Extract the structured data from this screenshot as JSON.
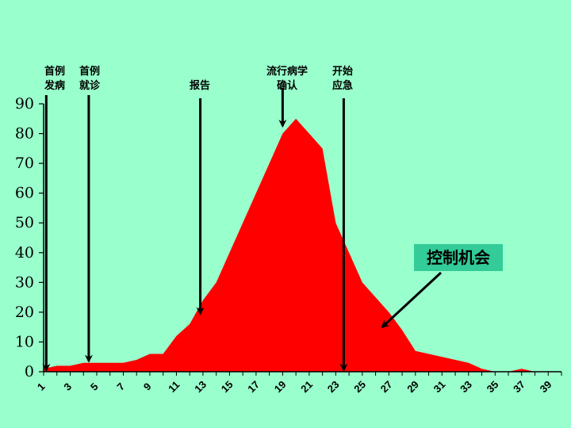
{
  "colors": {
    "background": "#99FFCC",
    "area_fill": "#FF0000",
    "callout_box": "#33CC99",
    "arrow": "#000000"
  },
  "chart_data": {
    "type": "area",
    "title": "",
    "xlabel": "",
    "ylabel": "",
    "ylim": [
      0,
      90
    ],
    "xlim": [
      1,
      40
    ],
    "y_ticks": [
      "0",
      "10",
      "20",
      "30",
      "40",
      "50",
      "60",
      "70",
      "80",
      "90"
    ],
    "x_ticks": [
      "1",
      "3",
      "5",
      "7",
      "9",
      "11",
      "13",
      "15",
      "17",
      "19",
      "21",
      "23",
      "25",
      "27",
      "29",
      "31",
      "33",
      "35",
      "37",
      "39"
    ],
    "grid": false,
    "x": [
      1,
      2,
      3,
      4,
      5,
      6,
      7,
      8,
      9,
      10,
      11,
      12,
      13,
      14,
      15,
      16,
      17,
      18,
      19,
      20,
      21,
      22,
      23,
      24,
      25,
      26,
      27,
      28,
      29,
      30,
      31,
      32,
      33,
      34,
      35,
      36,
      37,
      38,
      39,
      40
    ],
    "values": [
      1,
      2,
      2,
      3,
      3,
      3,
      3,
      4,
      6,
      6,
      12,
      16,
      24,
      30,
      40,
      50,
      60,
      70,
      80,
      85,
      80,
      75,
      50,
      40,
      30,
      25,
      20,
      14,
      7,
      6,
      5,
      4,
      3,
      1,
      0,
      0,
      1,
      0,
      0,
      0
    ],
    "annotations": [
      {
        "lines": [
          "首例",
          "发病"
        ],
        "x": 1.2,
        "y_tip": 0
      },
      {
        "lines": [
          "首例",
          "就诊"
        ],
        "x": 4.4,
        "y_tip": 3
      },
      {
        "lines": [
          "报告"
        ],
        "x": 12.8,
        "y_tip": 19
      },
      {
        "lines": [
          "流行病学",
          "确认"
        ],
        "x": 19,
        "y_tip": 82
      },
      {
        "lines": [
          "开始",
          "应急"
        ],
        "x": 23.6,
        "y_tip": 0
      }
    ],
    "callout": {
      "text": "控制机会",
      "arrow_tip_x": 26.5,
      "arrow_tip_y": 15
    }
  }
}
